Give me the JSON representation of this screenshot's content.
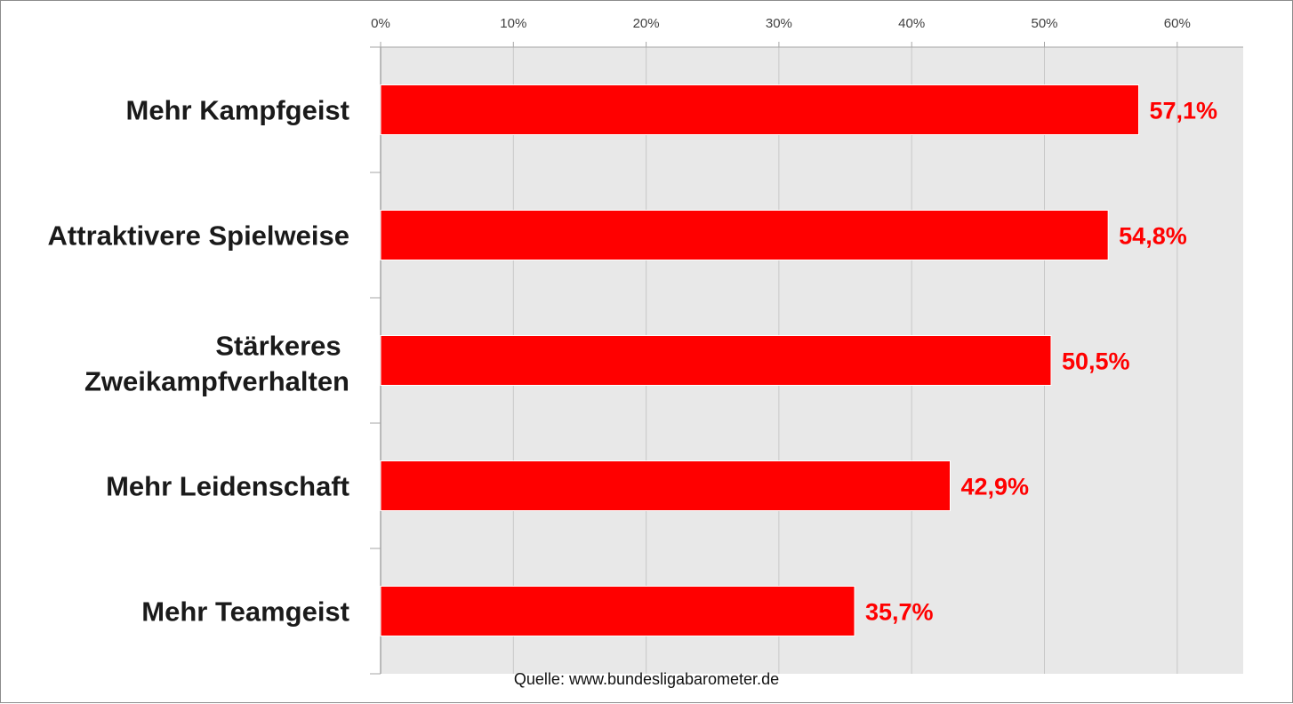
{
  "chart_data": {
    "type": "bar",
    "orientation": "horizontal",
    "categories": [
      "Mehr Kampfgeist",
      "Attraktivere Spielweise",
      "Stärkeres Zweikampfverhalten",
      "Mehr Leidenschaft",
      "Mehr Teamgeist"
    ],
    "values": [
      57.1,
      54.8,
      50.5,
      42.9,
      35.7
    ],
    "value_labels": [
      "57,1%",
      "54,8%",
      "50,5%",
      "42,9%",
      "35,7%"
    ],
    "x_ticks": [
      0,
      10,
      20,
      30,
      40,
      50,
      60
    ],
    "x_tick_labels": [
      "0%",
      "10%",
      "20%",
      "30%",
      "40%",
      "50%",
      "60%"
    ],
    "xlim": [
      0,
      65
    ],
    "axis_position": "top",
    "grid": true,
    "legend": "none",
    "title": "",
    "xlabel": "",
    "ylabel": "",
    "colors": {
      "bar": "#ff0000",
      "value_label": "#ff0000",
      "plot_background": "#e8e8e8",
      "grid": "#c8c8c8"
    }
  },
  "source": "Quelle: www.bundesligabarometer.de"
}
